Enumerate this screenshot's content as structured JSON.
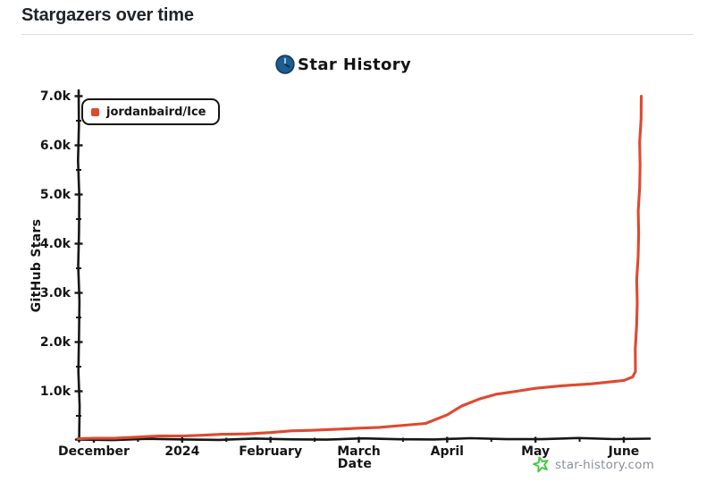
{
  "page": {
    "title": "Stargazers over time"
  },
  "chart": {
    "title": "Star History",
    "legend": [
      {
        "label": "jordanbaird/Ice",
        "color": "#dd4a30"
      }
    ],
    "watermark": {
      "text": "star-history.com",
      "star_color": "#3ecc3a",
      "text_color": "#8a8f98"
    },
    "colors": {
      "axis": "#161616",
      "logo_blue": "#1e5d91",
      "logo_blue_dark": "#143f63"
    }
  },
  "chart_data": {
    "type": "line",
    "title": "Star History",
    "xlabel": "Date",
    "ylabel": "GitHub Stars",
    "x_tick_labels": [
      "December",
      "2024",
      "February",
      "March",
      "April",
      "May",
      "June"
    ],
    "x_tick_dates": [
      "2023-12-01",
      "2024-01-01",
      "2024-02-01",
      "2024-03-01",
      "2024-04-01",
      "2024-05-01",
      "2024-06-01"
    ],
    "y_tick_labels": [
      "1.0k",
      "2.0k",
      "3.0k",
      "4.0k",
      "5.0k",
      "6.0k",
      "7.0k"
    ],
    "y_tick_values": [
      1000,
      2000,
      3000,
      4000,
      5000,
      6000,
      7000
    ],
    "ylim": [
      0,
      7000
    ],
    "grid": false,
    "legend_position": "top-left",
    "series": [
      {
        "name": "jordanbaird/Ice",
        "color": "#dd4a30",
        "points": [
          [
            "2023-11-26",
            35
          ],
          [
            "2023-12-01",
            45
          ],
          [
            "2023-12-15",
            65
          ],
          [
            "2024-01-01",
            90
          ],
          [
            "2024-01-15",
            125
          ],
          [
            "2024-02-01",
            160
          ],
          [
            "2024-02-15",
            205
          ],
          [
            "2024-03-01",
            250
          ],
          [
            "2024-03-15",
            300
          ],
          [
            "2024-03-24",
            345
          ],
          [
            "2024-04-01",
            520
          ],
          [
            "2024-04-06",
            700
          ],
          [
            "2024-04-12",
            840
          ],
          [
            "2024-04-18",
            940
          ],
          [
            "2024-04-25",
            1000
          ],
          [
            "2024-05-01",
            1060
          ],
          [
            "2024-05-10",
            1110
          ],
          [
            "2024-05-20",
            1150
          ],
          [
            "2024-06-01",
            1220
          ],
          [
            "2024-06-04",
            1290
          ],
          [
            "2024-06-05",
            1400
          ],
          [
            "2024-06-07",
            7000
          ]
        ]
      }
    ]
  }
}
